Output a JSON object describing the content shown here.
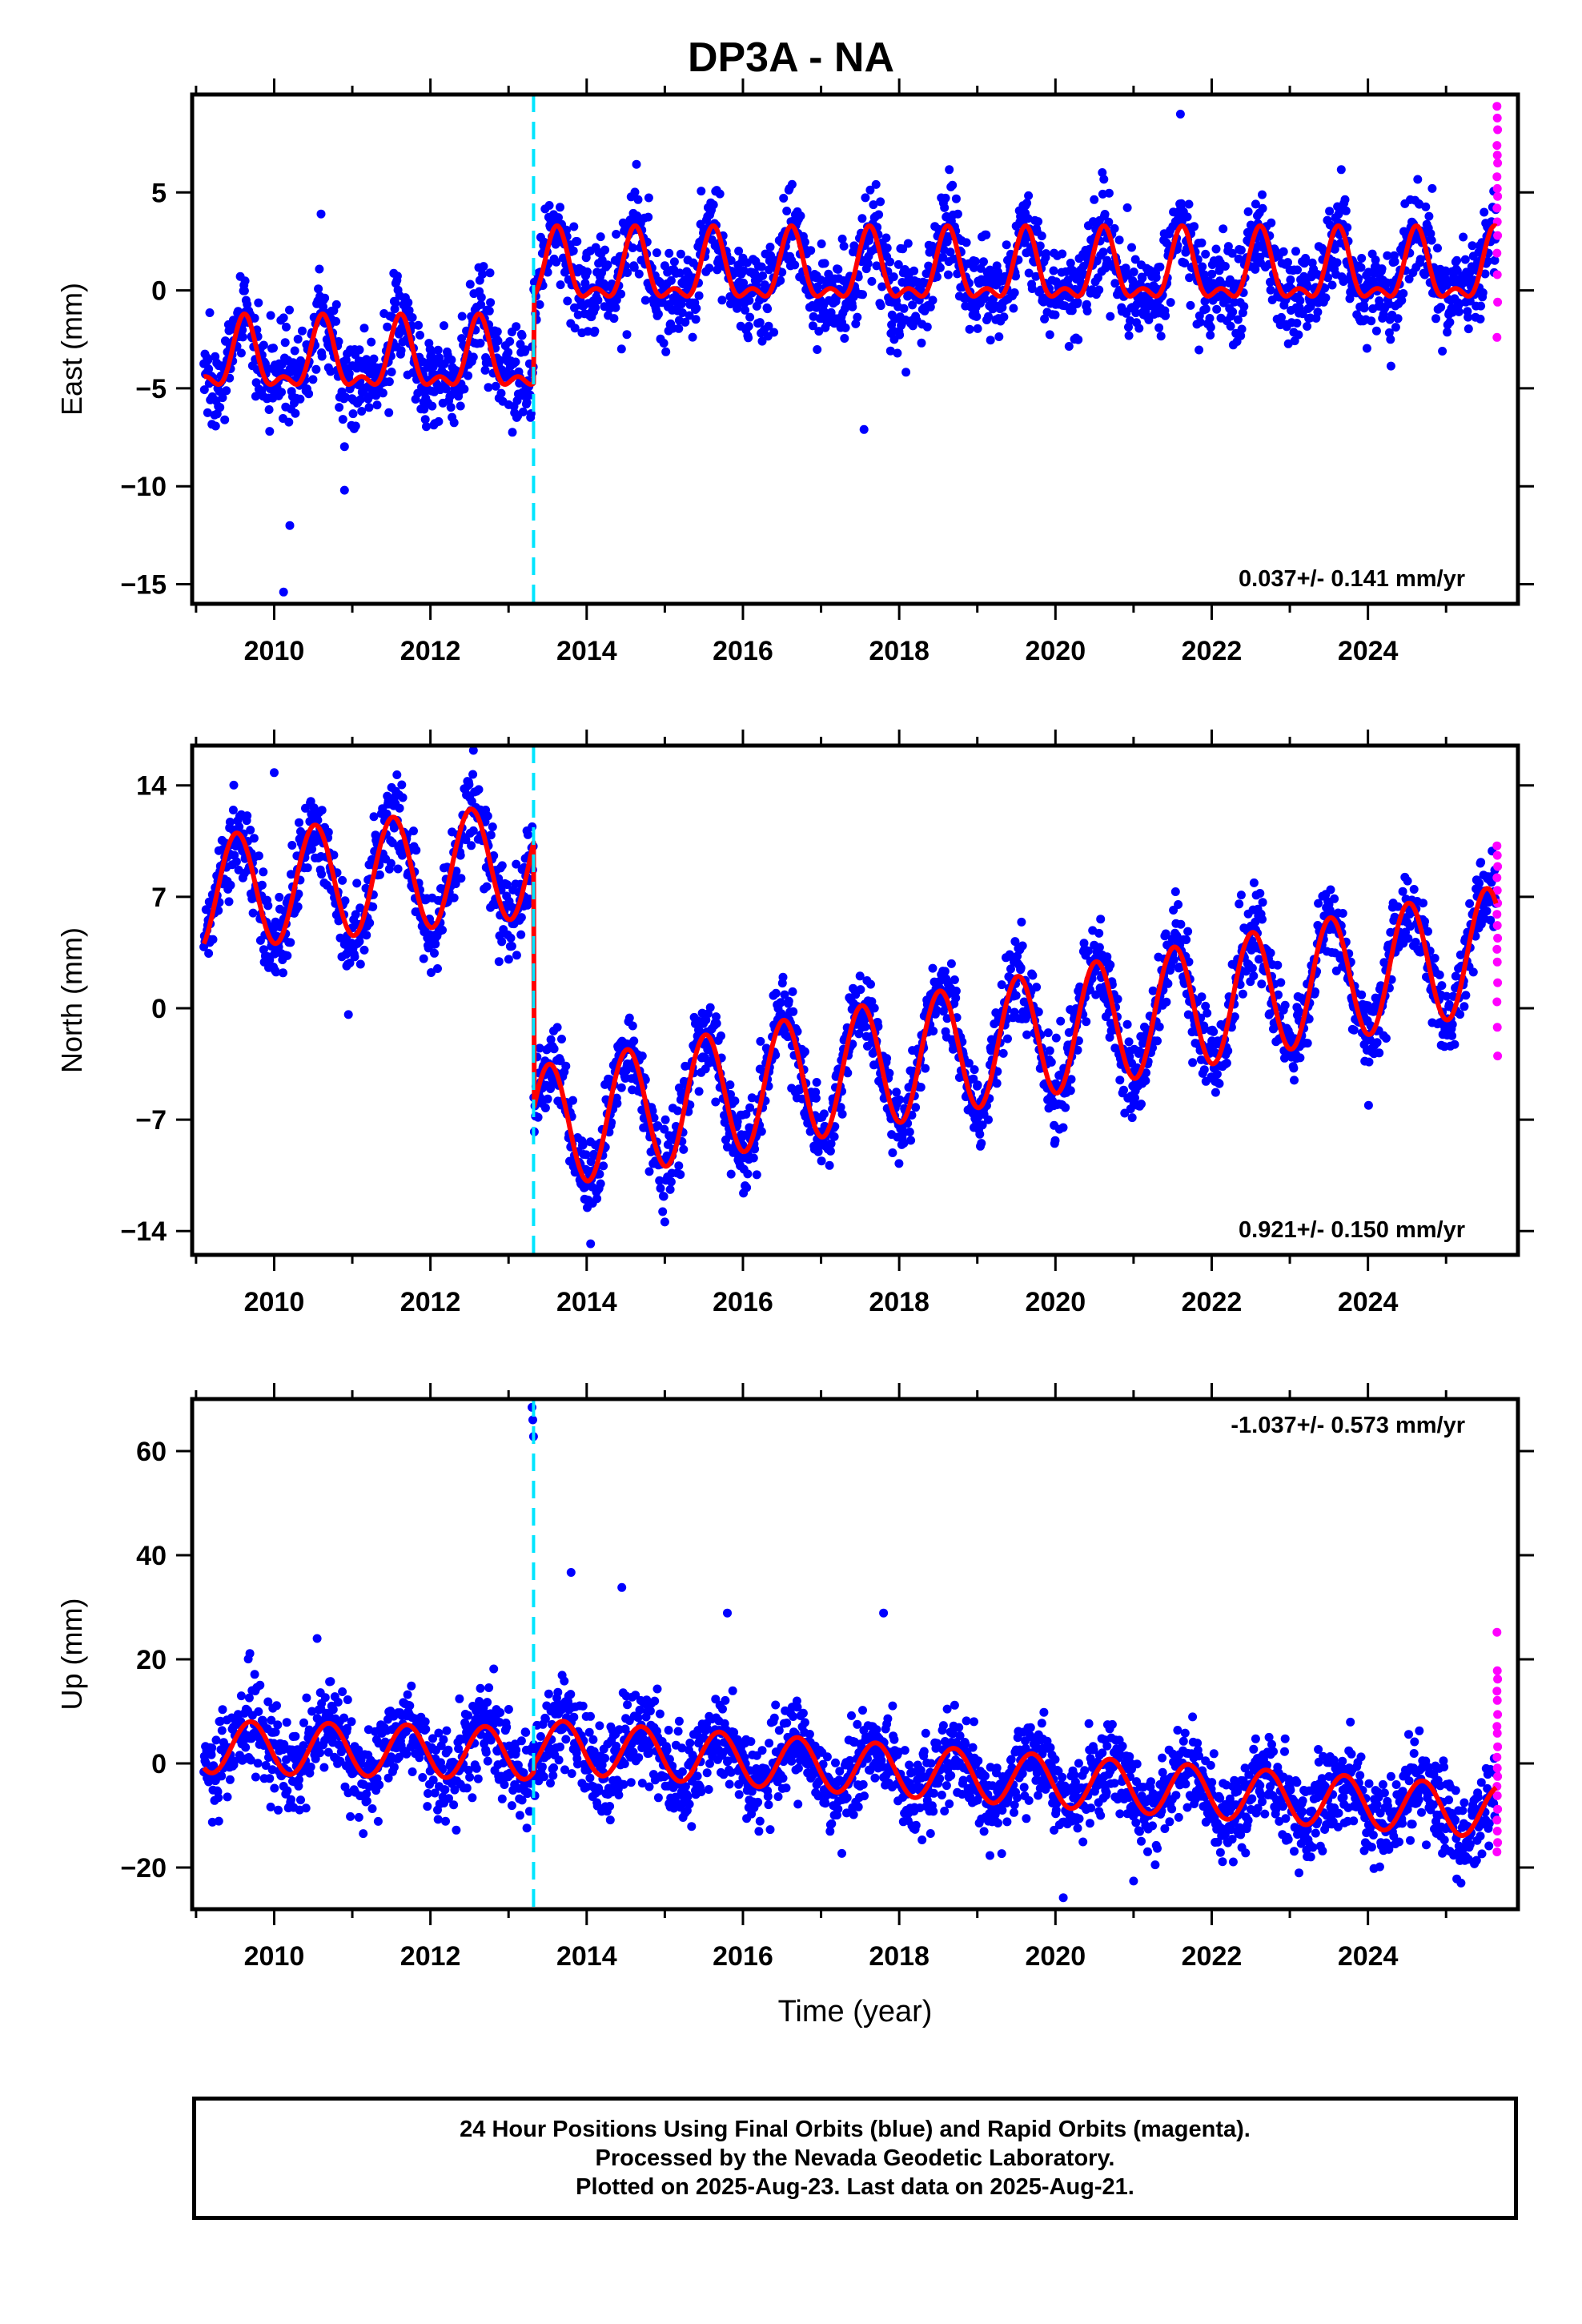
{
  "title": "DP3A - NA",
  "colors": {
    "final_orbits": "#0000ff",
    "rapid_orbits": "#ff00ff",
    "model": "#ff0000",
    "event_line": "#00e5ff"
  },
  "x_axis": {
    "label": "Time (year)",
    "range": [
      2008.95,
      2025.92
    ],
    "ticks": [
      2010,
      2012,
      2014,
      2016,
      2018,
      2020,
      2022,
      2024
    ]
  },
  "event_line_year": 2013.32,
  "chart_data": [
    {
      "type": "scatter",
      "name": "east",
      "ylabel": "East (mm)",
      "ylim": [
        -16,
        10
      ],
      "yticks": [
        -15,
        -10,
        -5,
        0,
        5
      ],
      "rate_label": "0.037+/- 0.141 mm/yr",
      "rate_position": "bottom-right",
      "data_start_year": 2009.1,
      "data_end_year": 2025.64,
      "model": {
        "segments": [
          {
            "start": 2009.1,
            "end": 2013.32,
            "offset": -3.6
          },
          {
            "start": 2013.32,
            "end": 2025.64,
            "offset": 0.9
          }
        ],
        "annual_amplitude": 1.6,
        "semiannual_amplitude": 0.8,
        "peak_phase": 0.62
      },
      "scatter_sigma": 1.2,
      "outliers": [
        {
          "x": 2010.12,
          "y": -15.4
        },
        {
          "x": 2010.2,
          "y": -12.0
        },
        {
          "x": 2010.9,
          "y": -10.2
        },
        {
          "x": 2017.55,
          "y": -7.1
        },
        {
          "x": 2021.6,
          "y": 9.0
        },
        {
          "x": 2010.6,
          "y": 3.9
        }
      ],
      "rapid_values": [
        9.4,
        8.8,
        8.2,
        7.4,
        6.9,
        6.5,
        5.8,
        5.2,
        4.8,
        4.2,
        3.5,
        2.8,
        1.9,
        0.8,
        -0.6,
        -2.4
      ]
    },
    {
      "type": "scatter",
      "name": "north",
      "ylabel": "North (mm)",
      "ylim": [
        -15.5,
        16.5
      ],
      "yticks": [
        -14,
        -7,
        0,
        7,
        14
      ],
      "rate_label": "0.921+/- 0.150 mm/yr",
      "rate_position": "bottom-right",
      "data_start_year": 2009.1,
      "data_end_year": 2025.64,
      "model": {
        "segments": [
          {
            "start": 2009.1,
            "end": 2013.32,
            "offset": 7.2,
            "trend": 0.5,
            "annual_amplitude": 3.6
          },
          {
            "start": 2013.32,
            "end": 2025.64,
            "offset": -7.6,
            "trend": 0.92,
            "annual_amplitude": 3.9
          }
        ],
        "peak_phase": 0.52
      },
      "scatter_sigma": 1.3,
      "outliers": [
        {
          "x": 2010.0,
          "y": 14.8
        },
        {
          "x": 2012.55,
          "y": 16.2
        },
        {
          "x": 2014.05,
          "y": -14.8
        },
        {
          "x": 2010.95,
          "y": -0.4
        }
      ],
      "rapid_values": [
        10.2,
        9.6,
        8.9,
        8.2,
        7.4,
        6.6,
        5.9,
        5.2,
        4.4,
        3.7,
        2.9,
        1.6,
        0.4,
        -1.2,
        -3.0
      ]
    },
    {
      "type": "scatter",
      "name": "up",
      "xlabel": "Time (year)",
      "ylabel": "Up (mm)",
      "ylim": [
        -28,
        70
      ],
      "yticks": [
        -20,
        0,
        20,
        40,
        60
      ],
      "rate_label": "-1.037+/- 0.573 mm/yr",
      "rate_position": "top-right",
      "data_start_year": 2009.1,
      "data_end_year": 2025.64,
      "model": {
        "segments": [
          {
            "start": 2009.1,
            "end": 2013.32,
            "offset": 3.2,
            "trend": -0.3
          },
          {
            "start": 2013.32,
            "end": 2025.64,
            "offset": 3.5,
            "trend": -1.04
          }
        ],
        "annual_amplitude": 5.0,
        "peak_phase": 0.7
      },
      "scatter_sigma": 4.3,
      "outliers": [
        {
          "x": 2013.3,
          "y": 68.4
        },
        {
          "x": 2013.31,
          "y": 66.0
        },
        {
          "x": 2013.32,
          "y": 62.8
        },
        {
          "x": 2013.8,
          "y": 36.7
        },
        {
          "x": 2014.45,
          "y": 33.8
        },
        {
          "x": 2017.8,
          "y": 28.9
        },
        {
          "x": 2015.8,
          "y": 28.9
        },
        {
          "x": 2010.55,
          "y": 24.0
        },
        {
          "x": 2020.1,
          "y": -25.8
        },
        {
          "x": 2021.0,
          "y": -22.6
        }
      ],
      "rapid_values": [
        25.2,
        17.8,
        16.2,
        13.9,
        12.1,
        9.4,
        7.1,
        5.8,
        3.2,
        1.2,
        -0.9,
        -2.5,
        -4.4,
        -6.2,
        -8.8,
        -10.9,
        -13.0,
        -15.2,
        -17.0
      ]
    }
  ],
  "footer": {
    "line1": "24 Hour Positions Using Final Orbits (blue) and Rapid Orbits (magenta).",
    "line2": "Processed by the Nevada Geodetic Laboratory.",
    "line3": "Plotted on 2025-Aug-23. Last data on 2025-Aug-21."
  }
}
